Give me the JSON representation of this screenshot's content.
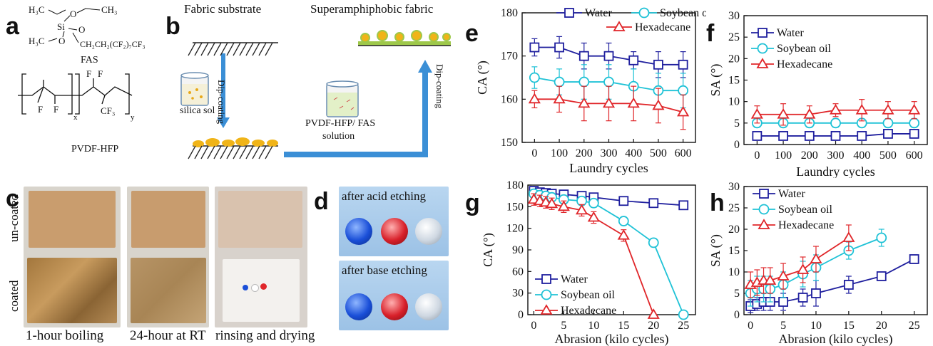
{
  "panels": {
    "a": {
      "label": "a",
      "fas_name": "FAS",
      "polymer_name": "PVDF-HFP",
      "fas_atoms": {
        "h3c_top": "H₃C",
        "ch3_top": "CH₃",
        "o1": "O",
        "o2": "O",
        "o3": "O",
        "si": "Si",
        "h3c_bottom": "H₃C",
        "chain": "CH₂CH₂(CF₂)₇CF₃"
      },
      "poly_atoms": {
        "f1": "F",
        "f2": "F",
        "f3": "F",
        "f4": "F",
        "cf3": "CF₃",
        "x": "x",
        "y": "y"
      }
    },
    "b": {
      "label": "b",
      "fabric_substrate": "Fabric substrate",
      "superamphiphobic_fabric": "Superamphiphobic fabric",
      "dip_coating_1": "Dip-coating",
      "dip_coating_2": "Dip-coating",
      "silica_sol": "silica sol",
      "solution_line1": "PVDF-HFP/ FAS",
      "solution_line2": "solution"
    },
    "c": {
      "label": "c",
      "row_uncoated": "un-coated",
      "row_coated": "coated",
      "captions": [
        "1-hour boiling",
        "24-hour at RT",
        "rinsing and drying"
      ]
    },
    "d": {
      "label": "d",
      "acid": "after acid etching",
      "base": "after base etching"
    },
    "e": {
      "label": "e"
    },
    "f": {
      "label": "f"
    },
    "g": {
      "label": "g"
    },
    "h": {
      "label": "h"
    }
  },
  "colors": {
    "water": "#1f1f9e",
    "soybean": "#1fc2d6",
    "hexadecane": "#e0262a",
    "fabric": "#c99d6e",
    "droplet_blue": "#1a4fd8",
    "droplet_red": "#d8202a"
  },
  "chart_data": [
    {
      "id": "e",
      "type": "line",
      "xlabel": "Laundry cycles",
      "ylabel": "CA (°)",
      "x": [
        0,
        100,
        200,
        300,
        400,
        500,
        600
      ],
      "xlim": [
        -50,
        650
      ],
      "ylim": [
        150,
        180
      ],
      "xticks": [
        "0",
        "100",
        "200",
        "300",
        "400",
        "500",
        "600"
      ],
      "yticks": [
        "150",
        "160",
        "170",
        "180"
      ],
      "series": [
        {
          "name": "Water",
          "marker": "square",
          "values": [
            172,
            172,
            170,
            170,
            169,
            168,
            168
          ],
          "err": [
            2,
            2.5,
            3,
            3,
            2,
            3,
            3
          ]
        },
        {
          "name": "Soybean oil",
          "marker": "circle",
          "values": [
            165,
            164,
            164,
            164,
            163,
            162,
            162
          ],
          "err": [
            2.5,
            3,
            4,
            4,
            4,
            4,
            4
          ]
        },
        {
          "name": "Hexadecane",
          "marker": "triangle",
          "values": [
            160,
            160,
            159,
            159,
            159,
            158.5,
            157
          ],
          "err": [
            2,
            3,
            4,
            4,
            4,
            4,
            4
          ]
        }
      ]
    },
    {
      "id": "f",
      "type": "line",
      "xlabel": "Laundry cycles",
      "ylabel": "SA (°)",
      "x": [
        0,
        100,
        200,
        300,
        400,
        500,
        600
      ],
      "xlim": [
        -50,
        650
      ],
      "ylim": [
        0,
        30
      ],
      "xticks": [
        "0",
        "100",
        "200",
        "300",
        "400",
        "500",
        "600"
      ],
      "yticks": [
        "0",
        "5",
        "10",
        "15",
        "20",
        "25",
        "30"
      ],
      "series": [
        {
          "name": "Water",
          "marker": "square",
          "values": [
            2,
            2,
            2,
            2,
            2,
            2.5,
            2.5
          ],
          "err": [
            1,
            1,
            1,
            1,
            1,
            1,
            1
          ]
        },
        {
          "name": "Soybean oil",
          "marker": "circle",
          "values": [
            5,
            5,
            5,
            5,
            5,
            5,
            5
          ],
          "err": [
            1,
            1,
            1,
            1,
            1,
            1,
            1
          ]
        },
        {
          "name": "Hexadecane",
          "marker": "triangle",
          "values": [
            7,
            7,
            7,
            8,
            8,
            8,
            8
          ],
          "err": [
            2,
            2.5,
            2,
            1.5,
            2.5,
            2,
            2
          ]
        }
      ]
    },
    {
      "id": "g",
      "type": "line",
      "xlabel": "Abrasion (kilo cycles)",
      "ylabel": "CA (°)",
      "xlim": [
        -1,
        27
      ],
      "ylim": [
        0,
        180
      ],
      "xticks": [
        "0",
        "5",
        "10",
        "15",
        "20",
        "25"
      ],
      "yticks": [
        "0",
        "30",
        "60",
        "90",
        "120",
        "150",
        "180"
      ],
      "series": [
        {
          "name": "Water",
          "marker": "square",
          "x": [
            0,
            1,
            2,
            3,
            5,
            8,
            10,
            15,
            20,
            25
          ],
          "values": [
            172,
            170,
            169,
            168,
            167,
            165,
            163,
            158,
            155,
            152
          ],
          "err": [
            4,
            4,
            4,
            4,
            4,
            4,
            4,
            4,
            4,
            4
          ]
        },
        {
          "name": "Soybean oil",
          "marker": "circle",
          "x": [
            0,
            1,
            2,
            3,
            5,
            8,
            10,
            15,
            20,
            25
          ],
          "values": [
            168,
            166,
            165,
            163,
            160,
            158,
            155,
            130,
            100,
            0
          ],
          "err": [
            6,
            6,
            6,
            6,
            6,
            6,
            6,
            6,
            6,
            0
          ]
        },
        {
          "name": "Hexadecane",
          "marker": "triangle",
          "x": [
            0,
            1,
            2,
            3,
            5,
            8,
            10,
            15,
            20
          ],
          "values": [
            160,
            158,
            156,
            154,
            150,
            145,
            135,
            110,
            0
          ],
          "err": [
            8,
            8,
            8,
            8,
            8,
            8,
            8,
            8,
            0
          ]
        }
      ]
    },
    {
      "id": "h",
      "type": "line",
      "xlabel": "Abrasion (kilo cycles)",
      "ylabel": "SA (°)",
      "xlim": [
        -1,
        27
      ],
      "ylim": [
        0,
        30
      ],
      "xticks": [
        "0",
        "5",
        "10",
        "15",
        "20",
        "25"
      ],
      "yticks": [
        "0",
        "5",
        "10",
        "15",
        "20",
        "25",
        "30"
      ],
      "series": [
        {
          "name": "Water",
          "marker": "square",
          "x": [
            0,
            1,
            2,
            3,
            5,
            8,
            10,
            15,
            20,
            25
          ],
          "values": [
            2,
            2.5,
            3,
            3,
            3,
            4,
            5,
            7,
            9,
            13
          ],
          "err": [
            1.5,
            1.5,
            2,
            2,
            2,
            2,
            3,
            2,
            1,
            1
          ]
        },
        {
          "name": "Soybean oil",
          "marker": "circle",
          "x": [
            0,
            1,
            2,
            3,
            5,
            8,
            10,
            15,
            20
          ],
          "values": [
            5,
            6,
            6,
            6,
            7,
            9.5,
            11,
            15,
            18
          ],
          "err": [
            3,
            3,
            3,
            3,
            3,
            3,
            3,
            2,
            2
          ]
        },
        {
          "name": "Hexadecane",
          "marker": "triangle",
          "x": [
            0,
            1,
            2,
            3,
            5,
            8,
            10,
            15
          ],
          "values": [
            7,
            7.5,
            8,
            8,
            9,
            10.5,
            13,
            18
          ],
          "err": [
            3,
            3,
            3,
            3,
            3,
            3,
            3,
            3
          ]
        }
      ]
    }
  ]
}
